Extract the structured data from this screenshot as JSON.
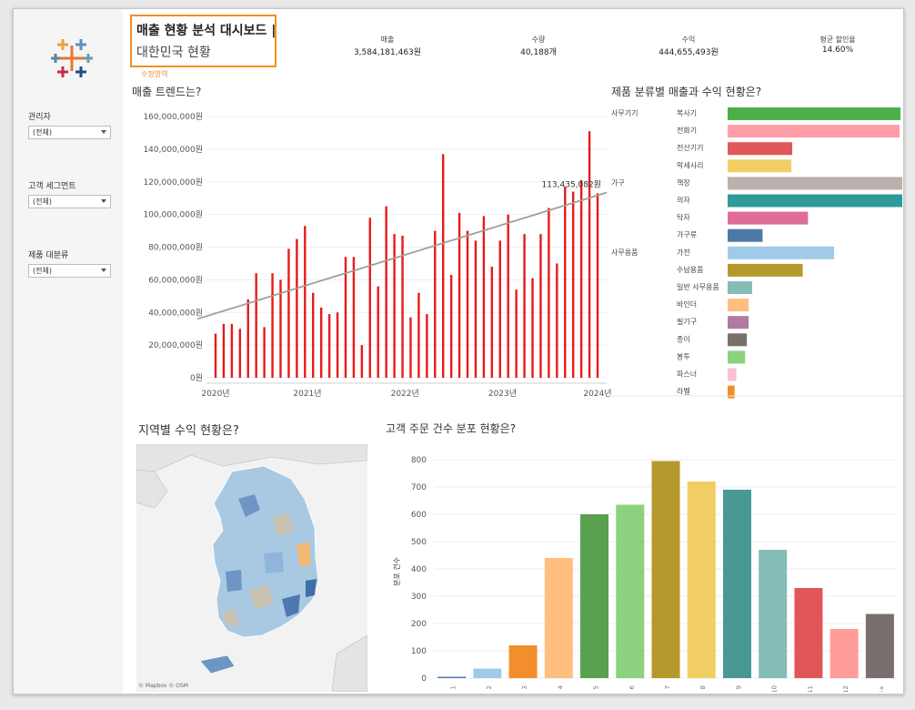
{
  "title": {
    "line1": "매출 현황 분석 대시보드 |",
    "line2": "대한민국 현황",
    "edit_tag": "수정영역"
  },
  "kpis": [
    {
      "label": "매출",
      "value": "3,584,181,463원"
    },
    {
      "label": "수량",
      "value": "40,188개"
    },
    {
      "label": "수익",
      "value": "444,655,493원"
    },
    {
      "label": "평균 할인율",
      "value": "14.60%"
    }
  ],
  "filters": [
    {
      "label": "관리자",
      "value": "(전체)"
    },
    {
      "label": "고객 세그먼트",
      "value": "(전체)"
    },
    {
      "label": "제품 대분류",
      "value": "(전체)"
    }
  ],
  "sections": {
    "trend": "매출 트렌드는?",
    "category": "제품 분류별 매출과 수익 현황은?",
    "region": "지역별 수익 현황은?",
    "orders": "고객 주문 건수 분포 현황은?"
  },
  "map": {
    "credit": "© Mapbox © OSM"
  },
  "colors": {
    "accent": "#f28e2b",
    "trend_bar": "#e8191a",
    "trend_line": "#9e9e9e"
  },
  "chart_data": [
    {
      "type": "bar",
      "title": "매출 트렌드는?",
      "x_ticks": [
        "2020년",
        "2021년",
        "2022년",
        "2023년",
        "2024년"
      ],
      "y_ticks": [
        "0원",
        "20,000,000원",
        "40,000,000원",
        "60,000,000원",
        "80,000,000원",
        "100,000,000원",
        "120,000,000원",
        "140,000,000원",
        "160,000,000원"
      ],
      "ylim": [
        0,
        160000000
      ],
      "values": [
        27000000,
        33000000,
        33000000,
        30000000,
        48000000,
        64000000,
        31000000,
        64000000,
        60000000,
        79000000,
        85000000,
        93000000,
        52000000,
        43000000,
        39000000,
        40000000,
        74000000,
        74000000,
        20000000,
        98000000,
        56000000,
        105000000,
        88000000,
        87000000,
        37000000,
        52000000,
        39000000,
        90000000,
        137000000,
        63000000,
        101000000,
        90000000,
        84000000,
        99000000,
        68000000,
        84000000,
        100000000,
        54000000,
        88000000,
        61000000,
        88000000,
        104000000,
        70000000,
        117000000,
        114000000,
        121000000,
        151000000,
        113000000
      ],
      "trendline": {
        "start": 36000000,
        "end": 113435082
      },
      "annotation": "113,435,082원"
    },
    {
      "type": "bar",
      "orientation": "horizontal",
      "title": "제품 분류별 매출과 수익 현황은?",
      "groups": [
        {
          "name": "사무기기",
          "items": [
            "복사기",
            "전화기",
            "전산기기",
            "악세사리"
          ]
        },
        {
          "name": "가구",
          "items": [
            "책장",
            "의자",
            "탁자",
            "가구류"
          ]
        },
        {
          "name": "사무용품",
          "items": [
            "가전",
            "수납용품",
            "일반 사무용품",
            "바인더",
            "필기구",
            "종이",
            "봉투",
            "파스너",
            "라벨"
          ]
        }
      ],
      "items": [
        {
          "name": "복사기",
          "value": 0.99,
          "color": "#4daf4a"
        },
        {
          "name": "전화기",
          "value": 0.985,
          "color": "#ff9da7"
        },
        {
          "name": "전산기기",
          "value": 0.37,
          "color": "#e15759"
        },
        {
          "name": "악세사리",
          "value": 0.365,
          "color": "#f1ce63"
        },
        {
          "name": "책장",
          "value": 1.0,
          "color": "#bab0ac"
        },
        {
          "name": "의자",
          "value": 1.0,
          "color": "#2f9a9a"
        },
        {
          "name": "탁자",
          "value": 0.46,
          "color": "#e06c9a"
        },
        {
          "name": "가구류",
          "value": 0.2,
          "color": "#4e79a7"
        },
        {
          "name": "가전",
          "value": 0.61,
          "color": "#a0cbe8"
        },
        {
          "name": "수납용품",
          "value": 0.43,
          "color": "#b6992d"
        },
        {
          "name": "일반 사무용품",
          "value": 0.14,
          "color": "#86bcb6"
        },
        {
          "name": "바인더",
          "value": 0.12,
          "color": "#ffbe7d"
        },
        {
          "name": "필기구",
          "value": 0.12,
          "color": "#b07aa1"
        },
        {
          "name": "종이",
          "value": 0.11,
          "color": "#79706e"
        },
        {
          "name": "봉투",
          "value": 0.1,
          "color": "#8cd17d"
        },
        {
          "name": "파스너",
          "value": 0.05,
          "color": "#fabfd2"
        },
        {
          "name": "라벨",
          "value": 0.04,
          "color": "#f28e2b"
        }
      ]
    },
    {
      "type": "bar",
      "title": "고객 주문 건수 분포 현황은?",
      "ylabel": "분포 건수",
      "ylim": [
        0,
        800
      ],
      "y_ticks": [
        "0",
        "100",
        "200",
        "300",
        "400",
        "500",
        "600",
        "700",
        "800"
      ],
      "categories": [
        "1",
        "2",
        "3",
        "4",
        "5",
        "6",
        "7",
        "8",
        "9",
        "10",
        "11",
        "12",
        "13+"
      ],
      "values": [
        5,
        35,
        120,
        440,
        600,
        635,
        795,
        720,
        690,
        470,
        330,
        180,
        235
      ],
      "colors": [
        "#4e79a7",
        "#a0cbe8",
        "#f28e2b",
        "#ffbe7d",
        "#59a14f",
        "#8cd17d",
        "#b6992d",
        "#f1ce63",
        "#499894",
        "#86bcb6",
        "#e15759",
        "#ff9d9a",
        "#79706e"
      ]
    }
  ]
}
